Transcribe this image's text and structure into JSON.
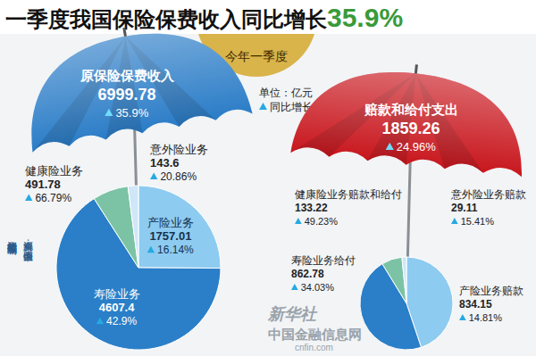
{
  "header": {
    "title": "一季度我国保险保费收入同比增长",
    "title_highlight": "35.9%",
    "period": "今年一季度",
    "unit": "单位：亿元",
    "growth_legend": "同比增长"
  },
  "credits": {
    "author": "新华社记者 陈琛编制",
    "source": "资料来源：中国保监会",
    "watermark": [
      "新华社",
      "中国金融信息网",
      "cnfin.com"
    ]
  },
  "chart_data": [
    {
      "type": "pie",
      "title": "原保险保费收入",
      "total": 6999.78,
      "total_growth": 35.9,
      "total_growth_label": "35.9%",
      "categories": [
        "产险业务",
        "寿险业务",
        "健康险业务",
        "意外险业务"
      ],
      "values": [
        1757.01,
        4607.4,
        491.78,
        143.6
      ],
      "growth": [
        16.14,
        42.9,
        66.79,
        20.86
      ],
      "growth_labels": [
        "16.14%",
        "42.9%",
        "66.79%",
        "20.86%"
      ],
      "colors": [
        "#8ecbf0",
        "#2a7fc8",
        "#7cc3a6",
        "#cfe7f7"
      ],
      "color": "#2a7cc7",
      "data_labels": true
    },
    {
      "type": "pie",
      "title": "赔款和给付支出",
      "total": 1859.26,
      "total_growth": 24.96,
      "total_growth_label": "24.96%",
      "categories": [
        "产险业务赔款",
        "寿险业务给付",
        "健康险业务赔款和给付",
        "意外险业务赔款"
      ],
      "values": [
        834.15,
        862.78,
        133.22,
        29.11
      ],
      "growth": [
        14.81,
        34.03,
        49.23,
        15.41
      ],
      "growth_labels": [
        "14.81%",
        "34.03%",
        "49.23%",
        "15.41%"
      ],
      "colors": [
        "#8ecbf0",
        "#2a7fc8",
        "#7cc3a6",
        "#cfe7f7"
      ],
      "color": "#c8161d",
      "data_labels": true
    }
  ]
}
